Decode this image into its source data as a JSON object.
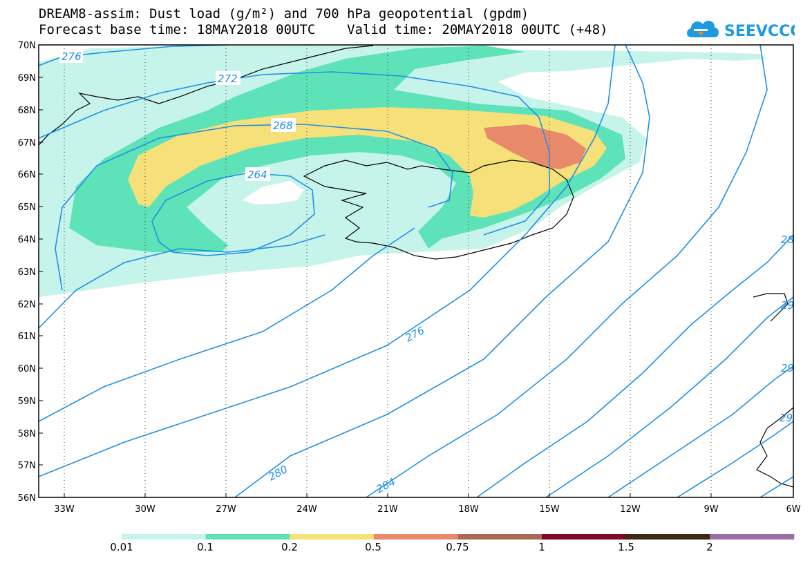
{
  "title": {
    "line1": "DREAM8-assim: Dust load (g/m²) and 700 hPa geopotential (gpdm)",
    "line2": "Forecast base time: 18MAY2018 00UTC    Valid time: 20MAY2018 00UTC (+48)"
  },
  "logo": {
    "text": "SEEVCCC",
    "icon": "cloud-icon"
  },
  "axes": {
    "lat_labels": [
      "70N",
      "69N",
      "68N",
      "67N",
      "66N",
      "65N",
      "64N",
      "63N",
      "62N",
      "61N",
      "60N",
      "59N",
      "58N",
      "57N",
      "56N"
    ],
    "lon_labels": [
      "33W",
      "30W",
      "27W",
      "24W",
      "21W",
      "18W",
      "15W",
      "12W",
      "9W",
      "6W"
    ]
  },
  "contours": {
    "color": "#1e90e6",
    "labels": [
      "276",
      "272",
      "268",
      "264",
      "276",
      "280",
      "284",
      "28",
      "29",
      "29",
      "29"
    ]
  },
  "colorbar": {
    "labels": [
      "0.01",
      "0.1",
      "0.2",
      "0.5",
      "0.75",
      "1",
      "1.5",
      "2"
    ],
    "colors": [
      "#c6f3ea",
      "#5ee2b8",
      "#f5e07a",
      "#e8896a",
      "#a76a55",
      "#7d0a2a",
      "#3d2a14",
      "#9a6fa8"
    ]
  },
  "field_colors": {
    "very_light": "#c6f3ea",
    "light": "#5ee2b8",
    "medium": "#f5e07a",
    "high": "#e8896a"
  }
}
